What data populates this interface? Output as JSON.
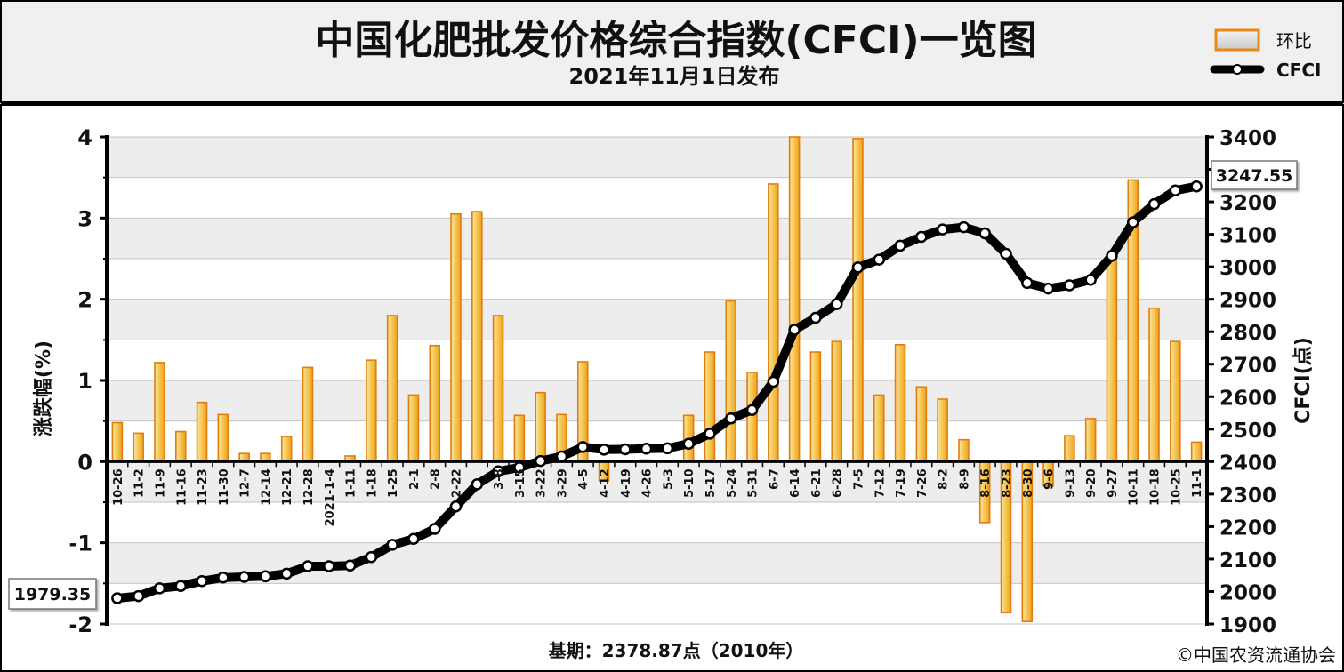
{
  "header": {
    "title": "中国化肥批发价格综合指数(CFCI)一览图",
    "subtitle": "2021年11月1日发布"
  },
  "legend": {
    "bar_label": "环比",
    "line_label": "CFCI"
  },
  "annotations": {
    "start_value": "1979.35",
    "end_value": "3247.55"
  },
  "footer": {
    "base_period": "基期：2378.87点（2010年）",
    "copyright": "©中国农资流通协会"
  },
  "colors": {
    "bar_fill_light": "#f8e7a0",
    "bar_fill_dark": "#f5b833",
    "bar_stroke": "#e07d10",
    "line": "#000000",
    "header_bg": "#f0f0f0",
    "grid_band": "#ededed"
  },
  "chart_data": {
    "type": "bar",
    "title": "中国化肥批发价格综合指数(CFCI)一览图",
    "categories": [
      "10-26",
      "11-2",
      "11-9",
      "11-16",
      "11-23",
      "11-30",
      "12-7",
      "12-14",
      "12-21",
      "12-28",
      "2021-1-4",
      "1-11",
      "1-18",
      "1-25",
      "2-1",
      "2-8",
      "2-22",
      "3-1",
      "3-8",
      "3-15",
      "3-22",
      "3-29",
      "4-5",
      "4-12",
      "4-19",
      "4-26",
      "5-3",
      "5-10",
      "5-17",
      "5-24",
      "5-31",
      "6-7",
      "6-14",
      "6-21",
      "6-28",
      "7-5",
      "7-12",
      "7-19",
      "7-26",
      "8-2",
      "8-9",
      "8-16",
      "8-23",
      "8-30",
      "9-6",
      "9-13",
      "9-20",
      "9-27",
      "10-11",
      "10-18",
      "10-25",
      "11-1"
    ],
    "tick_labels_shown": [
      "10-26",
      "11-2",
      "11-9",
      "11-16",
      "11-23",
      "11-30",
      "12-7",
      "12-14",
      "12-21",
      "12-28",
      "2021-1-4",
      "1-11",
      "1-18",
      "1-25",
      "2-1",
      "2-8",
      "2-22",
      "3-8",
      "3-15",
      "3-22",
      "3-29",
      "4-5",
      "4-12",
      "4-19",
      "4-26",
      "5-3",
      "5-10",
      "5-17",
      "5-24",
      "5-31",
      "6-7",
      "6-14",
      "6-21",
      "6-28",
      "7-5",
      "7-12",
      "7-19",
      "7-26",
      "8-2",
      "8-9",
      "8-16",
      "8-23",
      "8-30",
      "9-6",
      "9-13",
      "9-20",
      "9-27",
      "10-11",
      "10-18",
      "10-25",
      "11-1"
    ],
    "series": [
      {
        "name": "环比",
        "type": "bar",
        "axis": "left",
        "values": [
          0.48,
          0.35,
          1.22,
          0.37,
          0.73,
          0.58,
          0.1,
          0.1,
          0.31,
          1.16,
          0.0,
          0.07,
          1.25,
          1.8,
          0.82,
          1.43,
          3.05,
          3.08,
          1.8,
          0.57,
          0.85,
          0.58,
          1.23,
          -0.24,
          0.0,
          0.02,
          0.0,
          0.57,
          1.35,
          1.98,
          1.1,
          3.42,
          4.0,
          1.35,
          1.48,
          3.98,
          0.82,
          1.44,
          0.92,
          0.77,
          0.27,
          -0.75,
          -1.86,
          -1.97,
          -0.3,
          0.32,
          0.53,
          2.55,
          3.47,
          1.89,
          1.48,
          0.24
        ]
      },
      {
        "name": "CFCI",
        "type": "line",
        "axis": "right",
        "values": [
          1979.35,
          1986,
          2010,
          2017,
          2032,
          2043,
          2045,
          2047,
          2055,
          2078,
          2078,
          2080,
          2106,
          2144,
          2162,
          2193,
          2262,
          2330,
          2370,
          2382,
          2402,
          2416,
          2445,
          2437,
          2438,
          2440,
          2441,
          2455,
          2486,
          2533,
          2559,
          2646,
          2806,
          2843,
          2885,
          2998,
          3022,
          3065,
          3092,
          3115,
          3122,
          3103,
          3040,
          2950,
          2933,
          2943,
          2960,
          3034,
          3137,
          3193,
          3235,
          3247.55
        ]
      }
    ],
    "y_left": {
      "label": "涨跌幅(%)",
      "min": -2,
      "max": 4,
      "ticks": [
        -2,
        -1,
        0,
        1,
        2,
        3,
        4
      ]
    },
    "y_right": {
      "label": "CFCI(点)",
      "min": 1900,
      "max": 3400,
      "ticks": [
        1900,
        2000,
        2100,
        2200,
        2300,
        2400,
        2500,
        2600,
        2700,
        2800,
        2900,
        3000,
        3100,
        3200,
        3300,
        3400
      ]
    },
    "legend_position": "top-right",
    "grid": true
  }
}
